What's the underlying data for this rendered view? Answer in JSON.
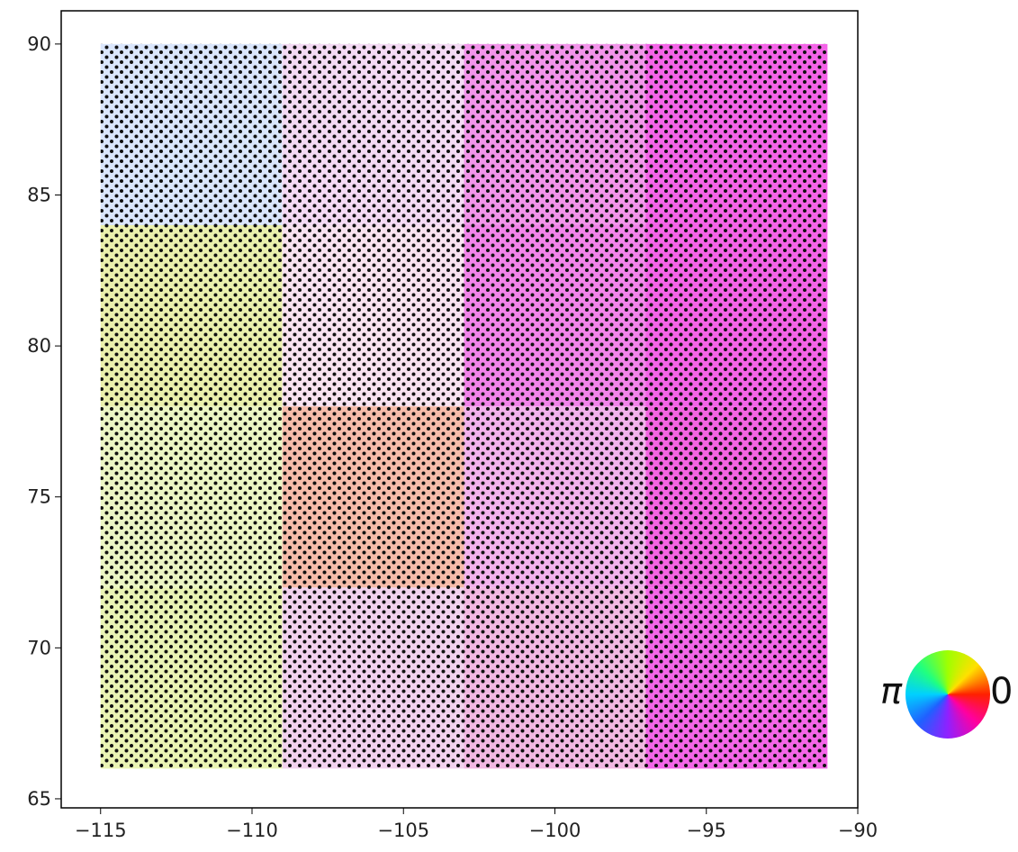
{
  "chart_data": {
    "type": "tiles",
    "x_edges": [
      -115,
      -109,
      -103,
      -97,
      -91
    ],
    "y_edges": [
      66,
      72,
      78,
      84,
      90
    ],
    "tile_colors": [
      [
        "#eaf4b4",
        "#f2d2ee",
        "#f2b8e2",
        "#f466e8"
      ],
      [
        "#ecf6c4",
        "#f6bcaa",
        "#f2b2ec",
        "#f464e2"
      ],
      [
        "#eaf0ac",
        "#f8e2f0",
        "#f284ea",
        "#f464e8"
      ],
      [
        "#dae6fc",
        "#f4daf4",
        "#f294ea",
        "#f464e8"
      ]
    ],
    "xlim": [
      -116.3,
      -90
    ],
    "ylim": [
      64.7,
      91.1
    ],
    "xticks": [
      {
        "value": -115,
        "label": "−115"
      },
      {
        "value": -110,
        "label": "−110"
      },
      {
        "value": -105,
        "label": "−105"
      },
      {
        "value": -100,
        "label": "−100"
      },
      {
        "value": -95,
        "label": "−95"
      },
      {
        "value": -90,
        "label": "−90"
      }
    ],
    "yticks": [
      65,
      70,
      75,
      80,
      85,
      90
    ],
    "legend_labels": [
      "π",
      "0"
    ]
  }
}
